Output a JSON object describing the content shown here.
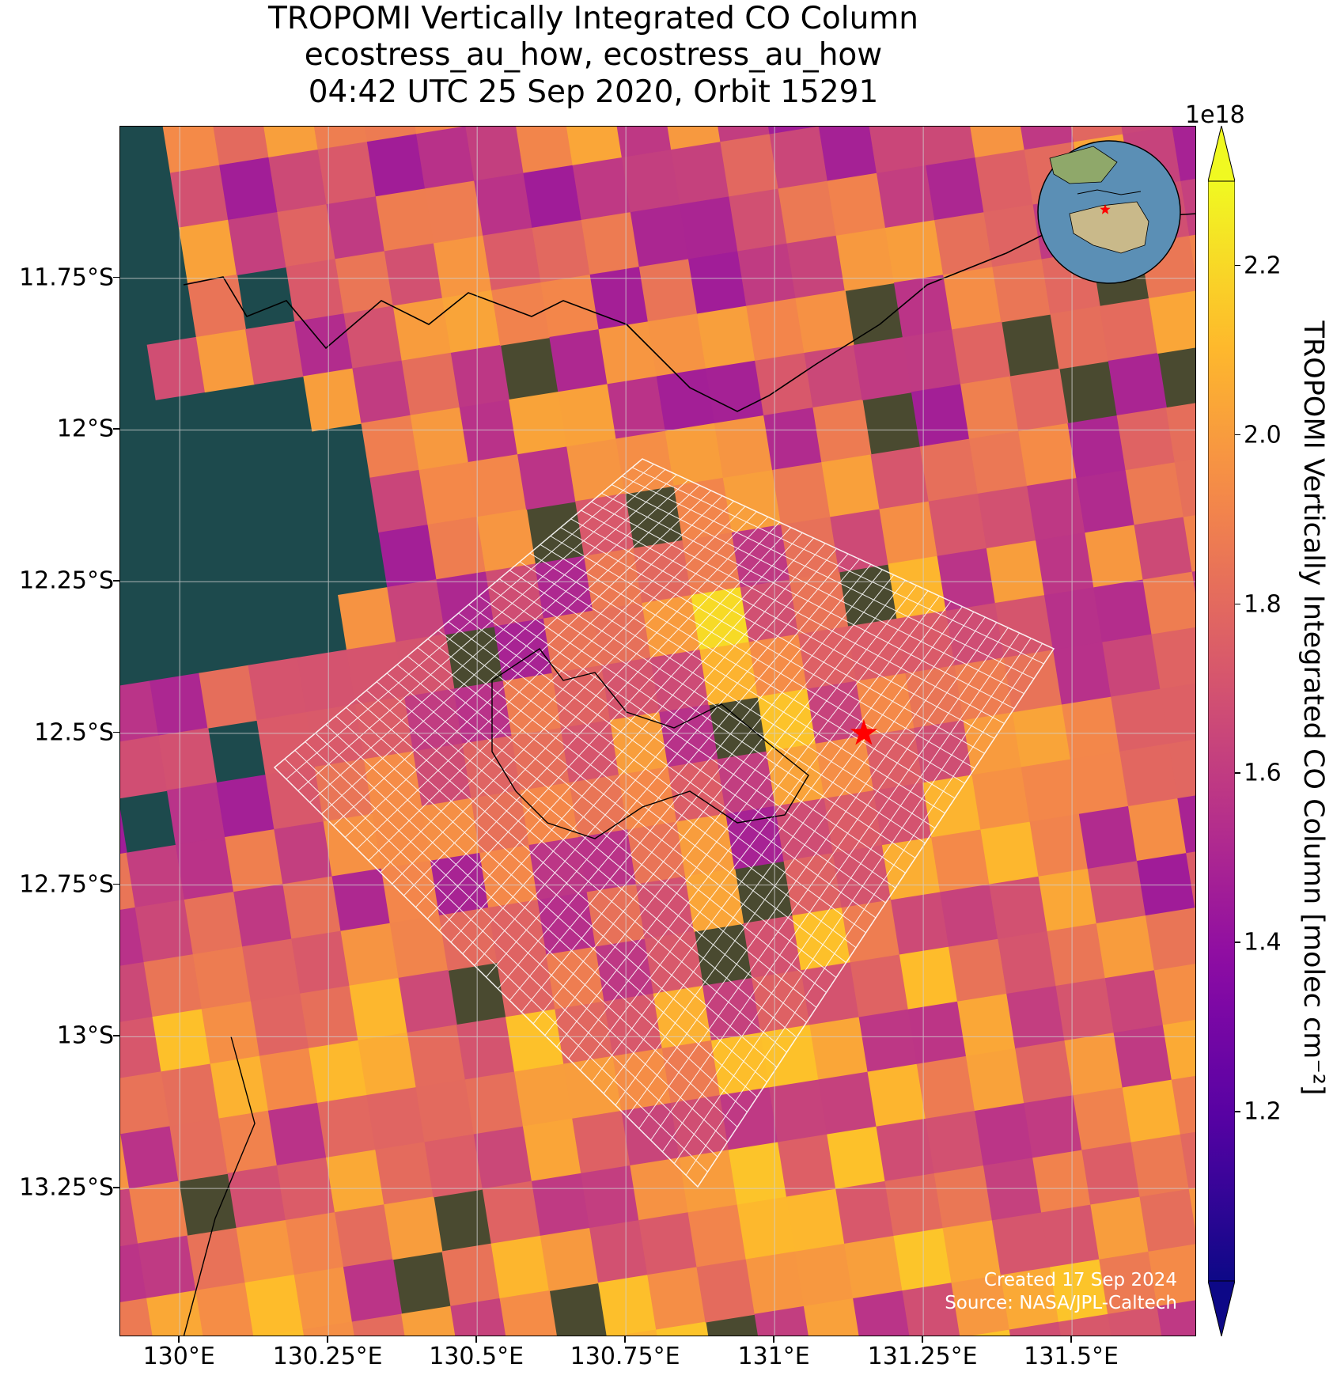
{
  "title": {
    "line1": "TROPOMI Vertically Integrated CO Column",
    "line2": "ecostress_au_how, ecostress_au_how",
    "line3": "04:42 UTC 25 Sep 2020, Orbit 15291"
  },
  "axes": {
    "lat_ticks": [
      {
        "value": -11.75,
        "label": "11.75°S"
      },
      {
        "value": -12.0,
        "label": "12°S"
      },
      {
        "value": -12.25,
        "label": "12.25°S"
      },
      {
        "value": -12.5,
        "label": "12.5°S"
      },
      {
        "value": -12.75,
        "label": "12.75°S"
      },
      {
        "value": -13.0,
        "label": "13°S"
      },
      {
        "value": -13.25,
        "label": "13.25°S"
      }
    ],
    "lon_ticks": [
      {
        "value": 130.0,
        "label": "130°E"
      },
      {
        "value": 130.25,
        "label": "130.25°E"
      },
      {
        "value": 130.5,
        "label": "130.5°E"
      },
      {
        "value": 130.75,
        "label": "130.75°E"
      },
      {
        "value": 131.0,
        "label": "131°E"
      },
      {
        "value": 131.25,
        "label": "131.25°E"
      },
      {
        "value": 131.5,
        "label": "131.5°E"
      }
    ],
    "lat_range": [
      -13.495,
      -11.5
    ],
    "lon_range": [
      129.9,
      131.71
    ],
    "grid": true
  },
  "colorbar": {
    "title": "TROPOMI Vertically Integrated CO Column [molec cm⁻²]",
    "exponent": "1e18",
    "range": [
      1.0,
      2.3
    ],
    "colormap": "plasma",
    "ticks": [
      {
        "value": 1.2,
        "label": "1.2"
      },
      {
        "value": 1.4,
        "label": "1.4"
      },
      {
        "value": 1.6,
        "label": "1.6"
      },
      {
        "value": 1.8,
        "label": "1.8"
      },
      {
        "value": 2.0,
        "label": "2.0"
      },
      {
        "value": 2.2,
        "label": "2.2"
      }
    ],
    "extend": "both"
  },
  "site_marker": {
    "lon": 131.15,
    "lat": -12.5,
    "symbol": "red-star",
    "color": "#ff0000"
  },
  "inset_globe": {
    "center": "Australia / Indonesia",
    "marker": "red-star"
  },
  "credits": {
    "created": "Created 17 Sep 2024",
    "source": "Source: NASA/JPL-Caltech"
  },
  "colors": {
    "ocean": "#1d4a4d",
    "land": "#4a4a30",
    "coastline": "#000000",
    "gridlines": "#d0d0d0",
    "ecostress_grid": "#ffffff",
    "site_marker": "#ff0000"
  }
}
